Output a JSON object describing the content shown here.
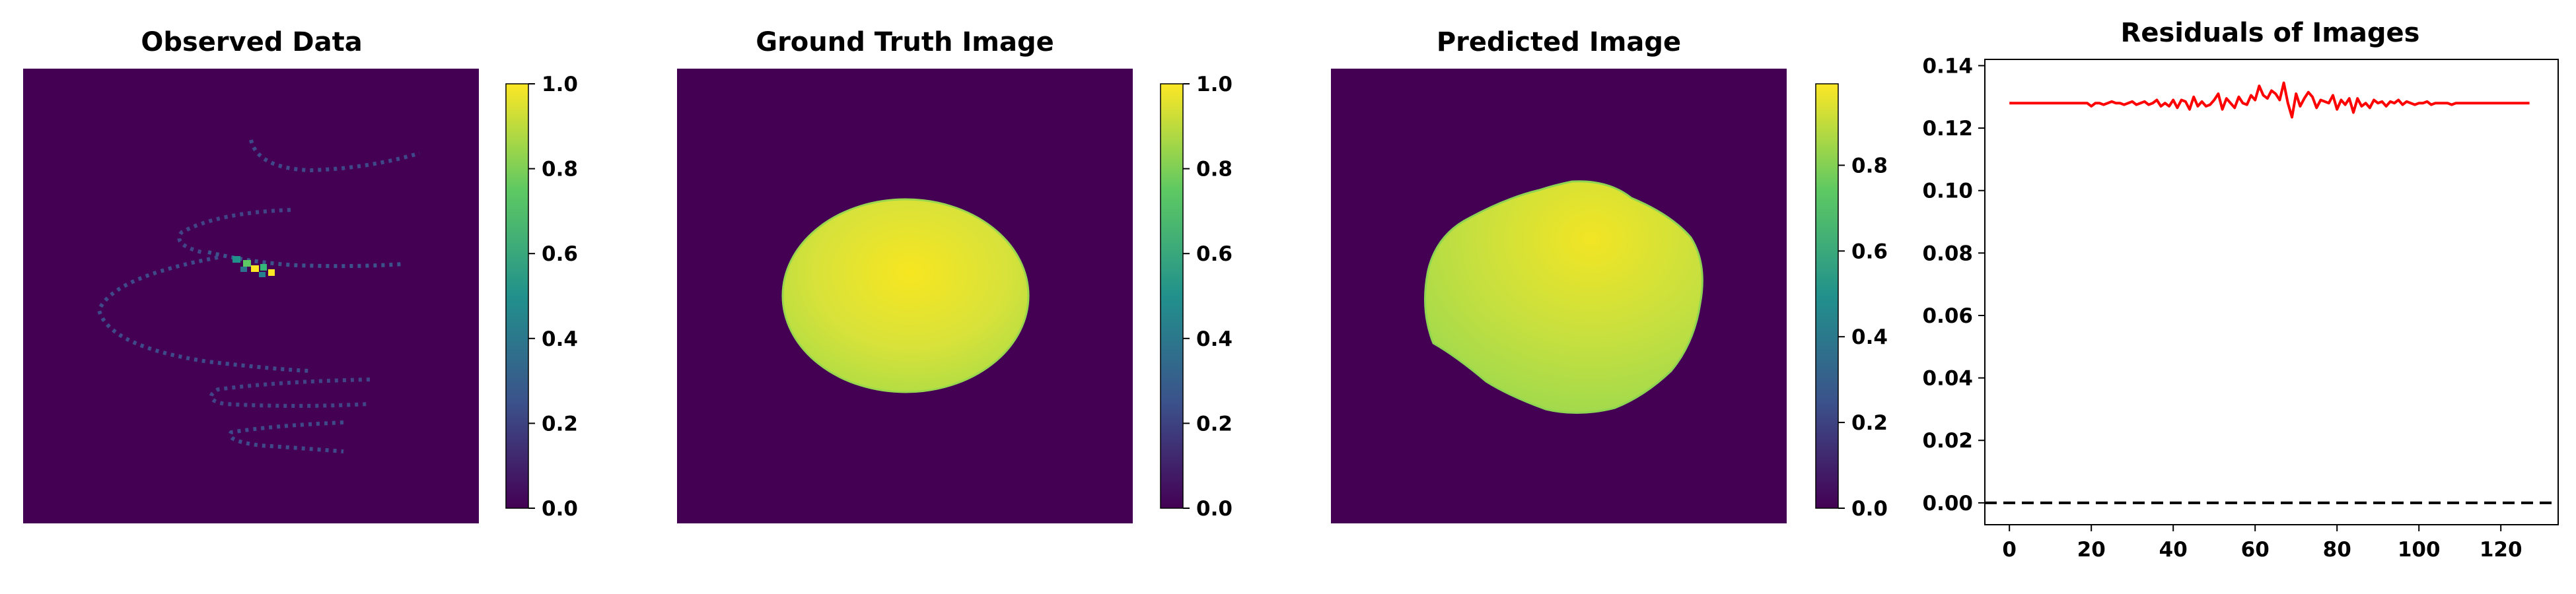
{
  "panels": [
    {
      "title": "Observed Data",
      "image": "observed-sparse-spiral-traces",
      "colorbar": {
        "ticks": [
          "0.0",
          "0.2",
          "0.4",
          "0.6",
          "0.8",
          "1.0"
        ],
        "range": [
          0,
          1
        ]
      }
    },
    {
      "title": "Ground Truth Image",
      "image": "ground-truth-ellipse",
      "colorbar": {
        "ticks": [
          "0.0",
          "0.2",
          "0.4",
          "0.6",
          "0.8",
          "1.0"
        ],
        "range": [
          0,
          1
        ]
      }
    },
    {
      "title": "Predicted Image",
      "image": "predicted-blob",
      "colorbar": {
        "ticks": [
          "0.0",
          "0.2",
          "0.4",
          "0.6",
          "0.8"
        ],
        "range": [
          0,
          0.99
        ]
      }
    }
  ],
  "colormap": [
    "#440154",
    "#3b528b",
    "#21918c",
    "#5ec962",
    "#fde725"
  ],
  "chart_data": {
    "type": "line",
    "title": "Residuals of Images",
    "xlabel": "",
    "ylabel": "",
    "xlim": [
      -6,
      134
    ],
    "ylim": [
      -0.007,
      0.142
    ],
    "xticks": [
      "0",
      "20",
      "40",
      "60",
      "80",
      "100",
      "120"
    ],
    "yticks": [
      "0.00",
      "0.02",
      "0.04",
      "0.06",
      "0.08",
      "0.10",
      "0.12",
      "0.14"
    ],
    "grid": false,
    "line_color": "#ff0000",
    "reference_line": {
      "y": 0,
      "style": "dashed",
      "color": "#000000"
    },
    "x": [
      0,
      1,
      2,
      3,
      4,
      5,
      6,
      7,
      8,
      9,
      10,
      11,
      12,
      13,
      14,
      15,
      16,
      17,
      18,
      19,
      20,
      21,
      22,
      23,
      24,
      25,
      26,
      27,
      28,
      29,
      30,
      31,
      32,
      33,
      34,
      35,
      36,
      37,
      38,
      39,
      40,
      41,
      42,
      43,
      44,
      45,
      46,
      47,
      48,
      49,
      50,
      51,
      52,
      53,
      54,
      55,
      56,
      57,
      58,
      59,
      60,
      61,
      62,
      63,
      64,
      65,
      66,
      67,
      68,
      69,
      70,
      71,
      72,
      73,
      74,
      75,
      76,
      77,
      78,
      79,
      80,
      81,
      82,
      83,
      84,
      85,
      86,
      87,
      88,
      89,
      90,
      91,
      92,
      93,
      94,
      95,
      96,
      97,
      98,
      99,
      100,
      101,
      102,
      103,
      104,
      105,
      106,
      107,
      108,
      109,
      110,
      111,
      112,
      113,
      114,
      115,
      116,
      117,
      118,
      119,
      120,
      121,
      122,
      123,
      124,
      125,
      126,
      127
    ],
    "values": [
      0.128,
      0.128,
      0.128,
      0.128,
      0.128,
      0.128,
      0.128,
      0.128,
      0.128,
      0.128,
      0.128,
      0.128,
      0.128,
      0.128,
      0.128,
      0.128,
      0.128,
      0.128,
      0.128,
      0.128,
      0.127,
      0.128,
      0.128,
      0.1275,
      0.128,
      0.1285,
      0.128,
      0.128,
      0.1275,
      0.128,
      0.1285,
      0.1275,
      0.128,
      0.1285,
      0.1275,
      0.128,
      0.129,
      0.127,
      0.128,
      0.127,
      0.129,
      0.1265,
      0.129,
      0.1285,
      0.126,
      0.13,
      0.127,
      0.1285,
      0.127,
      0.1275,
      0.129,
      0.131,
      0.126,
      0.1295,
      0.128,
      0.1265,
      0.13,
      0.128,
      0.1275,
      0.1305,
      0.129,
      0.1335,
      0.1305,
      0.1295,
      0.132,
      0.131,
      0.129,
      0.1345,
      0.128,
      0.1235,
      0.131,
      0.127,
      0.1295,
      0.1315,
      0.13,
      0.1265,
      0.129,
      0.1285,
      0.128,
      0.1305,
      0.126,
      0.129,
      0.1275,
      0.1295,
      0.125,
      0.1295,
      0.127,
      0.128,
      0.1265,
      0.129,
      0.128,
      0.1285,
      0.127,
      0.1285,
      0.128,
      0.129,
      0.1275,
      0.1285,
      0.128,
      0.1275,
      0.128,
      0.128,
      0.1285,
      0.1275,
      0.128,
      0.128,
      0.128,
      0.128,
      0.1275,
      0.128,
      0.128,
      0.128,
      0.128,
      0.128,
      0.128,
      0.128,
      0.128,
      0.128,
      0.128,
      0.128,
      0.128,
      0.128,
      0.128,
      0.128,
      0.128,
      0.128,
      0.128,
      0.128
    ]
  }
}
